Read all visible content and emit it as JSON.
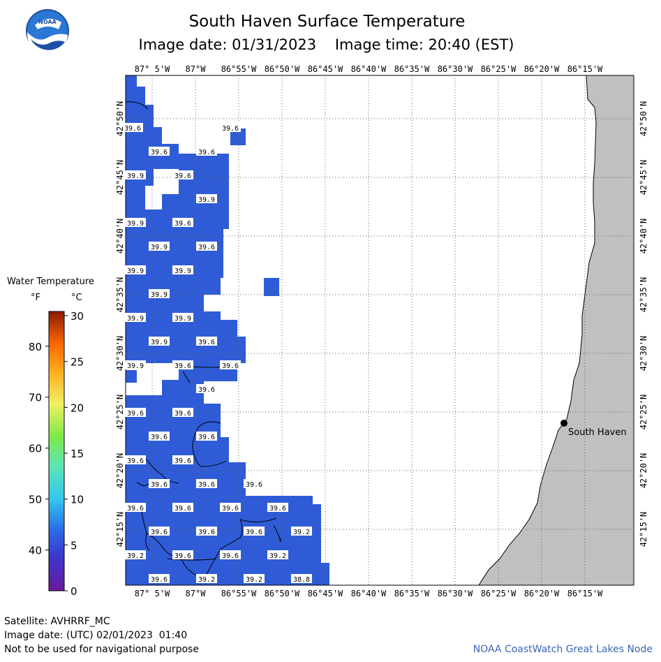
{
  "header": {
    "title": "South Haven Surface Temperature",
    "subtitle": "Image date: 01/31/2023    Image time: 20:40 (EST)",
    "logo_text": "NOAA"
  },
  "map": {
    "lon_labels": [
      "87° 5'W",
      "87°W",
      "86°55'W",
      "86°50'W",
      "86°45'W",
      "86°40'W",
      "86°35'W",
      "86°30'W",
      "86°25'W",
      "86°20'W",
      "86°15'W"
    ],
    "lat_labels": [
      "42°50'N",
      "42°45'N",
      "42°40'N",
      "42°35'N",
      "42°30'N",
      "42°25'N",
      "42°20'N",
      "42°15'N"
    ],
    "city": "South Haven",
    "colors": {
      "water": "#2f5cd6",
      "land": "#c0c0c0",
      "grid": "#707070"
    },
    "temps": [
      [
        "39.6",
        190,
        183
      ],
      [
        "39.6",
        330,
        183
      ],
      [
        "39.6",
        228,
        217
      ],
      [
        "39.6",
        296,
        217
      ],
      [
        "39.9",
        194,
        251
      ],
      [
        "39.6",
        262,
        251
      ],
      [
        "39.9",
        296,
        285
      ],
      [
        "39.9",
        194,
        319
      ],
      [
        "39.6",
        262,
        319
      ],
      [
        "39.9",
        228,
        353
      ],
      [
        "39.6",
        296,
        353
      ],
      [
        "39.9",
        194,
        387
      ],
      [
        "39.9",
        262,
        387
      ],
      [
        "39.9",
        228,
        421
      ],
      [
        "39.9",
        194,
        455
      ],
      [
        "39.9",
        262,
        455
      ],
      [
        "39.9",
        228,
        489
      ],
      [
        "39.6",
        296,
        489
      ],
      [
        "39.9",
        194,
        523
      ],
      [
        "39.6",
        262,
        523
      ],
      [
        "39.6",
        330,
        523
      ],
      [
        "39.6",
        296,
        557
      ],
      [
        "39.6",
        194,
        591
      ],
      [
        "39.6",
        262,
        591
      ],
      [
        "39.6",
        228,
        625
      ],
      [
        "39.6",
        296,
        625
      ],
      [
        "39.6",
        194,
        659
      ],
      [
        "39.6",
        262,
        659
      ],
      [
        "39.6",
        228,
        693
      ],
      [
        "39.6",
        296,
        693
      ],
      [
        "39.6",
        364,
        693
      ],
      [
        "39.6",
        194,
        727
      ],
      [
        "39.6",
        262,
        727
      ],
      [
        "39.6",
        330,
        727
      ],
      [
        "39.6",
        398,
        727
      ],
      [
        "39.6",
        228,
        761
      ],
      [
        "39.6",
        296,
        761
      ],
      [
        "39.6",
        364,
        761
      ],
      [
        "39.2",
        432,
        761
      ],
      [
        "39.2",
        194,
        795
      ],
      [
        "39.6",
        262,
        795
      ],
      [
        "39.6",
        330,
        795
      ],
      [
        "39.2",
        398,
        795
      ],
      [
        "39.6",
        228,
        829
      ],
      [
        "39.2",
        296,
        829
      ],
      [
        "39.2",
        364,
        829
      ],
      [
        "38.8",
        432,
        829
      ]
    ]
  },
  "legend": {
    "title": "Water Temperature",
    "unit_f": "°F",
    "unit_c": "°C",
    "f_ticks": [
      "80",
      "70",
      "60",
      "50",
      "40"
    ],
    "c_ticks": [
      "30",
      "25",
      "20",
      "15",
      "10",
      "5",
      "0"
    ]
  },
  "footer": {
    "satellite": "Satellite: AVHRRF_MC",
    "utc_date": "Image date: (UTC) 02/01/2023  01:40",
    "disclaimer": "Not to be used for navigational purpose",
    "credit": "NOAA CoastWatch Great Lakes Node"
  }
}
